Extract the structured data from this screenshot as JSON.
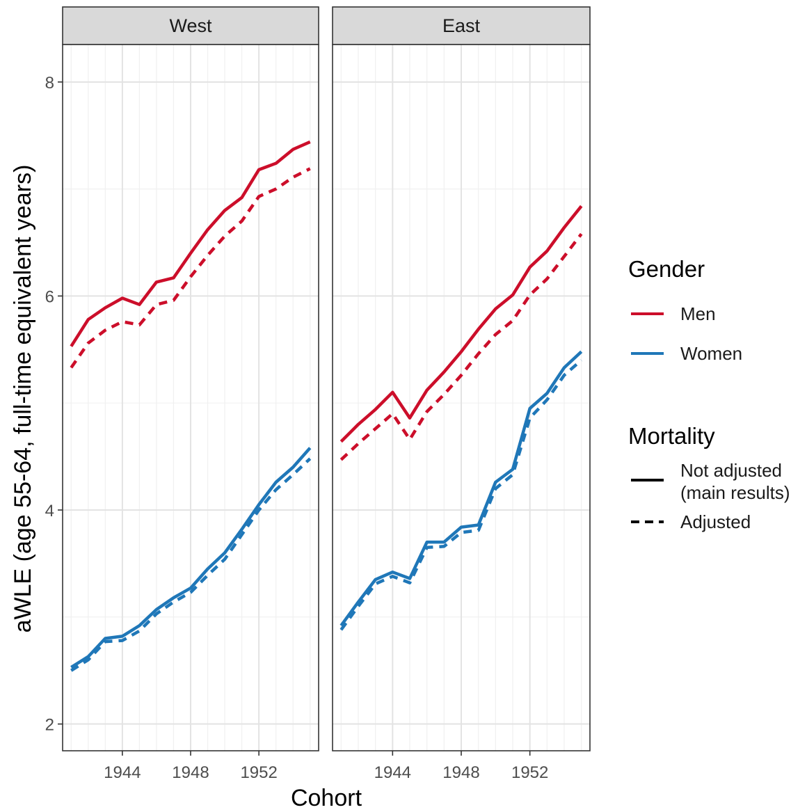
{
  "chart_data": {
    "type": "line",
    "facets": [
      "West",
      "East"
    ],
    "xlabel": "Cohort",
    "ylabel": "aWLE (age 55-64, full-time equivalent years)",
    "xlim": [
      1940.5,
      1955.5
    ],
    "ylim": [
      1.75,
      8.35
    ],
    "x_ticks": [
      1944,
      1948,
      1952
    ],
    "x_tick_labels": [
      "1944",
      "1948",
      "1952"
    ],
    "y_ticks": [
      2,
      4,
      6,
      8
    ],
    "y_tick_labels": [
      "2",
      "4",
      "6",
      "8"
    ],
    "grid": true,
    "legend_placement": "right",
    "legend": {
      "gender_title": "Gender",
      "gender_items": [
        {
          "label": "Men",
          "color": "#cc0e2a"
        },
        {
          "label": "Women",
          "color": "#1f77b8"
        }
      ],
      "mortality_title": "Mortality",
      "mortality_items": [
        {
          "label_line1": "Not adjusted",
          "label_line2": "(main results)",
          "dash": "solid"
        },
        {
          "label_line1": "Adjusted",
          "label_line2": "",
          "dash": "dashed"
        }
      ]
    },
    "x": [
      1941,
      1942,
      1943,
      1944,
      1945,
      1946,
      1947,
      1948,
      1949,
      1950,
      1951,
      1952,
      1953,
      1954,
      1955
    ],
    "panels": [
      {
        "facet": "West",
        "series": [
          {
            "gender": "Men",
            "mortality": "Not adjusted",
            "values": [
              5.53,
              5.78,
              5.89,
              5.98,
              5.92,
              6.13,
              6.17,
              6.4,
              6.62,
              6.8,
              6.92,
              7.18,
              7.24,
              7.37,
              7.44
            ]
          },
          {
            "gender": "Men",
            "mortality": "Adjusted",
            "values": [
              5.33,
              5.56,
              5.68,
              5.76,
              5.73,
              5.92,
              5.96,
              6.18,
              6.38,
              6.56,
              6.7,
              6.93,
              7.0,
              7.11,
              7.19
            ]
          },
          {
            "gender": "Women",
            "mortality": "Not adjusted",
            "values": [
              2.53,
              2.63,
              2.8,
              2.82,
              2.92,
              3.07,
              3.18,
              3.27,
              3.45,
              3.6,
              3.82,
              4.05,
              4.26,
              4.4,
              4.58
            ]
          },
          {
            "gender": "Women",
            "mortality": "Adjusted",
            "values": [
              2.5,
              2.6,
              2.77,
              2.78,
              2.87,
              3.03,
              3.14,
              3.23,
              3.39,
              3.54,
              3.77,
              4.0,
              4.19,
              4.33,
              4.48
            ]
          }
        ]
      },
      {
        "facet": "East",
        "series": [
          {
            "gender": "Men",
            "mortality": "Not adjusted",
            "values": [
              4.64,
              4.8,
              4.94,
              5.1,
              4.86,
              5.12,
              5.29,
              5.48,
              5.69,
              5.88,
              6.01,
              6.27,
              6.42,
              6.64,
              6.84
            ]
          },
          {
            "gender": "Men",
            "mortality": "Adjusted",
            "values": [
              4.47,
              4.62,
              4.76,
              4.9,
              4.66,
              4.92,
              5.08,
              5.26,
              5.46,
              5.64,
              5.77,
              6.01,
              6.16,
              6.37,
              6.58
            ]
          },
          {
            "gender": "Women",
            "mortality": "Not adjusted",
            "values": [
              2.92,
              3.14,
              3.35,
              3.42,
              3.36,
              3.7,
              3.7,
              3.84,
              3.86,
              4.26,
              4.38,
              4.95,
              5.09,
              5.33,
              5.48
            ]
          },
          {
            "gender": "Women",
            "mortality": "Adjusted",
            "values": [
              2.88,
              3.1,
              3.31,
              3.38,
              3.32,
              3.65,
              3.66,
              3.79,
              3.81,
              4.2,
              4.33,
              4.86,
              5.03,
              5.26,
              5.4
            ]
          }
        ]
      }
    ]
  }
}
